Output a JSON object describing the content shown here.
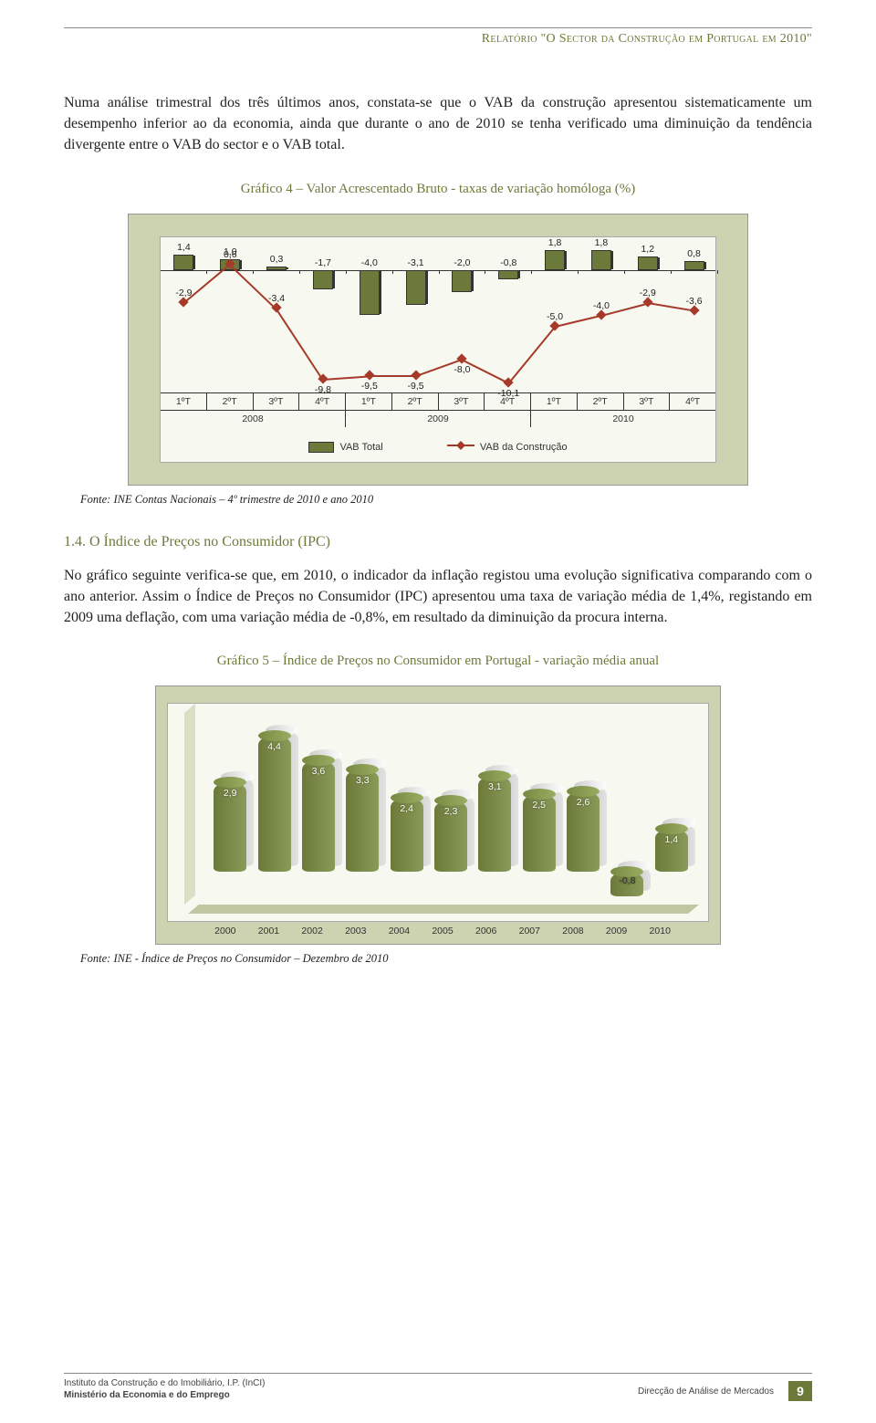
{
  "header": {
    "title": "Relatório \"O Sector da Construção em Portugal em 2010\""
  },
  "para1": "Numa análise trimestral dos três últimos anos, constata-se que o VAB da construção apresentou sistematicamente um desempenho inferior ao da economia, ainda que durante o ano de 2010 se tenha verificado uma diminuição da tendência divergente entre o VAB do sector e o VAB total.",
  "fig4": {
    "title": "Gráfico 4 – Valor Acrescentado Bruto - taxas de variação homóloga (%)",
    "type": "bar+line",
    "background": "#cdd3b0",
    "plot_bg": "#f7f9f0",
    "bar_color": "#6b7a3a",
    "line_color": "#a63a2a",
    "axis_color": "#333333",
    "scale": {
      "min": -11,
      "max": 3,
      "zero_used_as_axis": true
    },
    "categories": [
      "1ºT",
      "2ºT",
      "3ºT",
      "4ºT",
      "1ºT",
      "2ºT",
      "3ºT",
      "4ºT",
      "1ºT",
      "2ºT",
      "3ºT",
      "4ºT"
    ],
    "year_groups": [
      "2008",
      "2009",
      "2010"
    ],
    "vab_total": [
      1.4,
      1.0,
      0.3,
      -1.7,
      -4.0,
      -3.1,
      -2.0,
      -0.8,
      1.8,
      1.8,
      1.2,
      0.8
    ],
    "vab_total_labels": [
      "1,4",
      "1,0",
      "0,3",
      "-1,7",
      "-4,0",
      "-3,1",
      "-2,0",
      "-0,8",
      "1,8",
      "1,8",
      "1,2",
      "0,8"
    ],
    "vab_constr": [
      -2.9,
      0.6,
      -3.4,
      -9.8,
      -9.5,
      -9.5,
      -8.0,
      -10.1,
      -5.0,
      -4.0,
      -2.9,
      -3.6
    ],
    "vab_constr_labels": [
      "-2,9",
      "0,6",
      "-3,4",
      "-9,8",
      "-9,5",
      "-9,5",
      "-8,0",
      "-10,1",
      "-5,0",
      "-4,0",
      "-2,9",
      "-3,6"
    ],
    "legend": {
      "a": "VAB Total",
      "b": "VAB da Construção"
    },
    "fonte": "Fonte: INE Contas Nacionais – 4º trimestre de 2010 e ano 2010"
  },
  "sec14": {
    "head": "1.4. O Índice de Preços no Consumidor (IPC)",
    "para": "No gráfico seguinte verifica-se que, em 2010, o indicador da inflação registou uma evolução significativa comparando com o ano anterior. Assim o Índice de Preços no Consumidor (IPC) apresentou uma taxa de variação média de 1,4%, registando em 2009 uma deflação, com uma variação média de -0,8%, em resultado da diminuição da procura interna."
  },
  "fig5": {
    "title": "Gráfico 5 – Índice de Preços no Consumidor em Portugal - variação média anual",
    "type": "3d-cylinder-bar-pairs",
    "background": "#cdd3b0",
    "plot_bg": "#f7f9f0",
    "front_color": "#6b7a3a",
    "back_color": "#cacaca",
    "years": [
      "2000",
      "2001",
      "2002",
      "2003",
      "2004",
      "2005",
      "2006",
      "2007",
      "2008",
      "2009",
      "2010"
    ],
    "values": [
      2.9,
      4.4,
      3.6,
      3.3,
      2.4,
      2.3,
      3.1,
      2.5,
      2.6,
      -0.8,
      1.4
    ],
    "value_labels": [
      "2,9",
      "4,4",
      "3,6",
      "3,3",
      "2,4",
      "2,3",
      "3,1",
      "2,5",
      "2,6",
      "-0,8",
      "1,4"
    ],
    "scale": {
      "min": -1,
      "max": 5
    },
    "fonte": "Fonte: INE - Índice de Preços no Consumidor – Dezembro de 2010"
  },
  "footer": {
    "inst1": "Instituto da Construção e do Imobiliário, I.P. (InCI)",
    "inst2": "Ministério da Economia e do Emprego",
    "right": "Direcção de Análise de Mercados",
    "page": "9"
  }
}
